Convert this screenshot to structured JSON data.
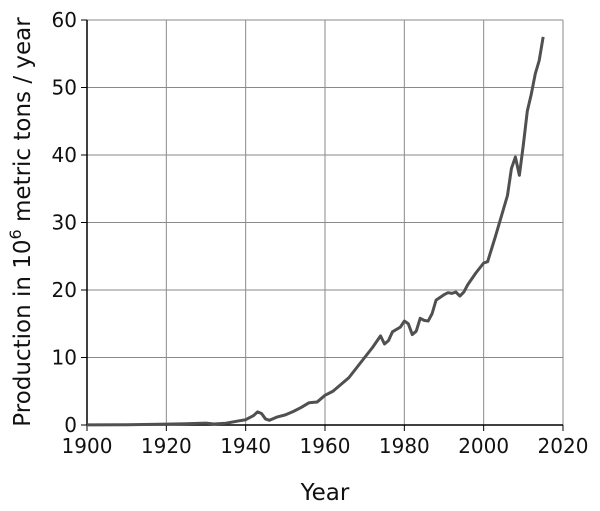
{
  "chart_data": {
    "type": "line",
    "x_label": "Year",
    "y_label": {
      "before": "Production in 10",
      "superscript": "6",
      "after": " metric tons / year"
    },
    "x": [
      1900,
      1910,
      1920,
      1925,
      1930,
      1932,
      1935,
      1938,
      1940,
      1942,
      1943,
      1944,
      1945,
      1946,
      1948,
      1950,
      1952,
      1954,
      1956,
      1958,
      1960,
      1962,
      1964,
      1966,
      1968,
      1970,
      1972,
      1974,
      1975,
      1976,
      1977,
      1979,
      1980,
      1981,
      1982,
      1983,
      1984,
      1985,
      1986,
      1987,
      1988,
      1990,
      1991,
      1992,
      1993,
      1994,
      1995,
      1996,
      1998,
      2000,
      2001,
      2003,
      2005,
      2006,
      2007,
      2008,
      2009,
      2010,
      2011,
      2012,
      2013,
      2014,
      2015
    ],
    "series": [
      {
        "color": "#505050",
        "values": [
          0.01,
          0.04,
          0.13,
          0.18,
          0.27,
          0.15,
          0.26,
          0.58,
          0.78,
          1.4,
          1.95,
          1.7,
          0.9,
          0.7,
          1.2,
          1.5,
          2.0,
          2.6,
          3.3,
          3.4,
          4.4,
          5.0,
          6.0,
          7.0,
          8.5,
          10.0,
          11.5,
          13.2,
          12.0,
          12.5,
          13.8,
          14.5,
          15.4,
          15.0,
          13.4,
          13.9,
          15.8,
          15.5,
          15.4,
          16.5,
          18.5,
          19.3,
          19.6,
          19.5,
          19.7,
          19.1,
          19.7,
          20.8,
          22.5,
          24.0,
          24.2,
          28,
          32,
          34,
          38,
          39.7,
          37,
          41.5,
          46.5,
          49,
          52,
          54,
          57.5
        ]
      }
    ],
    "xlim": [
      1900,
      2020
    ],
    "xticks": [
      1900,
      1920,
      1940,
      1960,
      1980,
      2000,
      2020
    ],
    "ylim": [
      0,
      60
    ],
    "yticks": [
      0,
      10,
      20,
      30,
      40,
      50,
      60
    ],
    "grid": true
  }
}
